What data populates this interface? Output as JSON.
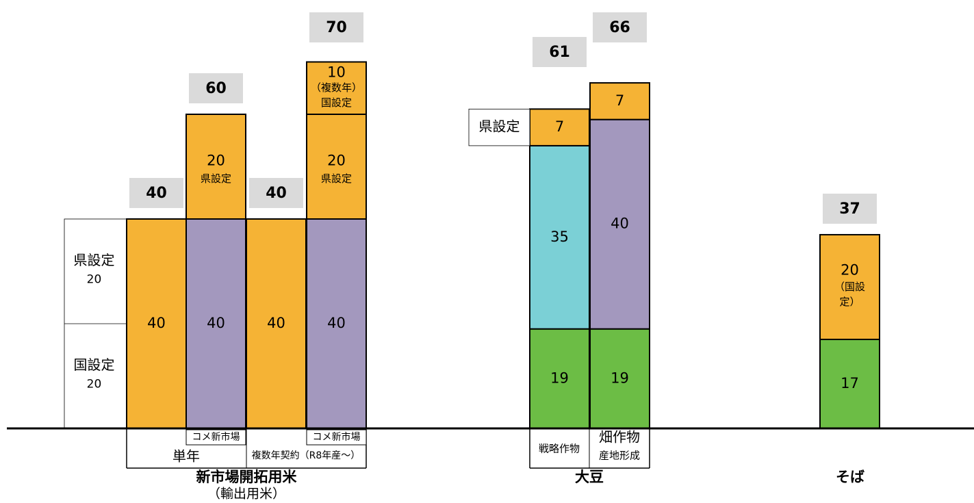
{
  "colors": {
    "orange": "#F5B335",
    "purple": "#A398BE",
    "cyan": "#7BD0D6",
    "green": "#6CBD45",
    "total_box": "#DADADA",
    "line": "#000000"
  },
  "chart_data": {
    "type": "bar",
    "stacked": true,
    "axis": {
      "visible": false,
      "grid": false
    },
    "ylim": [
      0,
      70
    ],
    "groups": [
      {
        "id": "rice",
        "label": "新市場開拓用米",
        "sublabel": "（輸出用米）"
      },
      {
        "id": "soy",
        "label": "大豆",
        "sublabel": ""
      },
      {
        "id": "buckwheat",
        "label": "そば",
        "sublabel": ""
      }
    ],
    "side_box": {
      "segments": [
        {
          "label": "国設定",
          "value": "20"
        },
        {
          "label": "県設定",
          "value": "20"
        }
      ]
    },
    "bars": [
      {
        "id": "rice-single",
        "group": "rice",
        "total": 40,
        "tag": "",
        "segments": [
          {
            "value": 40,
            "color": "orange",
            "lines": [
              "40"
            ]
          }
        ]
      },
      {
        "id": "rice-single-new",
        "group": "rice",
        "total": 60,
        "tag": "コメ新市場",
        "segments": [
          {
            "value": 40,
            "color": "purple",
            "lines": [
              "40"
            ]
          },
          {
            "value": 20,
            "color": "orange",
            "lines": [
              "20",
              "県設定"
            ]
          }
        ]
      },
      {
        "id": "rice-multi",
        "group": "rice",
        "total": 40,
        "tag": "",
        "segments": [
          {
            "value": 40,
            "color": "orange",
            "lines": [
              "40"
            ]
          }
        ]
      },
      {
        "id": "rice-multi-new",
        "group": "rice",
        "total": 70,
        "tag": "コメ新市場",
        "segments": [
          {
            "value": 40,
            "color": "purple",
            "lines": [
              "40"
            ]
          },
          {
            "value": 20,
            "color": "orange",
            "lines": [
              "20",
              "県設定"
            ]
          },
          {
            "value": 10,
            "color": "orange",
            "lines": [
              "10",
              "（複数年）",
              "国設定"
            ]
          }
        ]
      },
      {
        "id": "soy-strategic",
        "group": "soy",
        "total": 61,
        "tag": "戦略作物",
        "segments": [
          {
            "value": 19,
            "color": "green",
            "lines": [
              "19"
            ]
          },
          {
            "value": 35,
            "color": "cyan",
            "lines": [
              "35"
            ]
          },
          {
            "value": 7,
            "color": "orange",
            "lines": [
              "7"
            ]
          }
        ]
      },
      {
        "id": "soy-field",
        "group": "soy",
        "total": 66,
        "tag": "畑作物 産地形成",
        "segments": [
          {
            "value": 19,
            "color": "green",
            "lines": [
              "19"
            ]
          },
          {
            "value": 40,
            "color": "purple",
            "lines": [
              "40"
            ]
          },
          {
            "value": 7,
            "color": "orange",
            "lines": [
              "7"
            ]
          }
        ]
      },
      {
        "id": "buckwheat-bar",
        "group": "buckwheat",
        "total": 37,
        "tag": "",
        "segments": [
          {
            "value": 17,
            "color": "green",
            "lines": [
              "17"
            ]
          },
          {
            "value": 20,
            "color": "orange",
            "lines": [
              "20",
              "（国設",
              "定）"
            ]
          }
        ]
      }
    ],
    "annotations": {
      "soy_prefecture_label": "県設定",
      "period_single": "単年",
      "period_multi": "複数年契約（R8年産～）",
      "field_crop_line1": "畑作物",
      "field_crop_line2": "産地形成"
    }
  }
}
